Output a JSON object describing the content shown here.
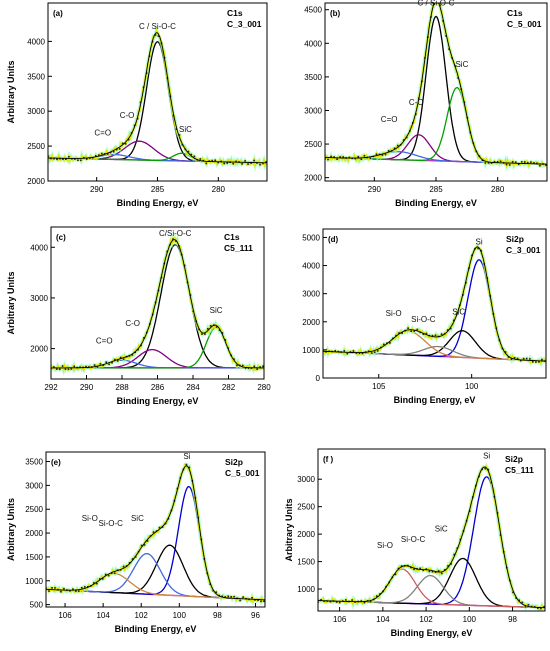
{
  "chart_data": [
    {
      "panel": "(a)",
      "type": "line",
      "title_line1": "C1s",
      "title_line2": "C_3_001",
      "xlabel": "Binding Energy, eV",
      "ylabel": "Arbitrary Units",
      "xlim": [
        294,
        276
      ],
      "ylim": [
        2000,
        4550
      ],
      "xticks": [
        290,
        285,
        280
      ],
      "yticks": [
        2000,
        2500,
        3000,
        3500,
        4000
      ],
      "x_reversed": true,
      "baseline": {
        "start": 2330,
        "end": 2260
      },
      "peaks": [
        {
          "label": "C / Si-O-C",
          "center": 285.0,
          "height": 1700,
          "width": 0.9,
          "color": "#000000"
        },
        {
          "label": "C-O",
          "center": 286.5,
          "height": 270,
          "width": 1.2,
          "color": "#800080"
        },
        {
          "label": "C=O",
          "center": 288.5,
          "height": 70,
          "width": 1.2,
          "color": "#4169e1"
        },
        {
          "label": "SiC",
          "center": 283.0,
          "height": 110,
          "width": 0.7,
          "color": "#00a000"
        }
      ],
      "peak_labels": [
        {
          "text": "C / Si-O-C",
          "x": 285.0,
          "y": 4180
        },
        {
          "text": "C-O",
          "x": 287.5,
          "y": 2900
        },
        {
          "text": "C=O",
          "x": 289.5,
          "y": 2650
        },
        {
          "text": "SiC",
          "x": 282.7,
          "y": 2700
        }
      ]
    },
    {
      "panel": "(b)",
      "type": "line",
      "title_line1": "C1s",
      "title_line2": "C_5_001",
      "xlabel": "Binding Energy, eV",
      "ylabel": "",
      "xlim": [
        294,
        276
      ],
      "ylim": [
        1950,
        4600
      ],
      "xticks": [
        290,
        285,
        280
      ],
      "yticks": [
        2000,
        2500,
        3000,
        3500,
        4000,
        4500
      ],
      "x_reversed": true,
      "baseline": {
        "start": 2300,
        "end": 2200
      },
      "peaks": [
        {
          "label": "C / Si-O-C",
          "center": 285.0,
          "height": 2150,
          "width": 0.8,
          "color": "#000000"
        },
        {
          "label": "C-O",
          "center": 286.4,
          "height": 380,
          "width": 0.9,
          "color": "#800080"
        },
        {
          "label": "C=O",
          "center": 288.0,
          "height": 120,
          "width": 1.4,
          "color": "#4169e1"
        },
        {
          "label": "SiC",
          "center": 283.3,
          "height": 1100,
          "width": 0.8,
          "color": "#00a000"
        }
      ],
      "peak_labels": [
        {
          "text": "C / Si-O-C",
          "x": 285.0,
          "y": 4560
        },
        {
          "text": "C-O",
          "x": 286.6,
          "y": 3080
        },
        {
          "text": "C=O",
          "x": 288.8,
          "y": 2830
        },
        {
          "text": "SiC",
          "x": 282.9,
          "y": 3650
        }
      ]
    },
    {
      "panel": "(c)",
      "type": "line",
      "title_line1": "C1s",
      "title_line2": "C5_111",
      "xlabel": "Binding Energy, eV",
      "ylabel": "Arbitrary Units",
      "xlim": [
        292,
        280
      ],
      "ylim": [
        1400,
        4400
      ],
      "xticks": [
        292,
        290,
        288,
        286,
        284,
        282,
        280
      ],
      "yticks": [
        2000,
        3000,
        4000
      ],
      "x_reversed": true,
      "baseline": {
        "start": 1620,
        "end": 1620
      },
      "peaks": [
        {
          "label": "C/Si-O-C",
          "center": 285.0,
          "height": 2430,
          "width": 0.8,
          "color": "#000000"
        },
        {
          "label": "C-O",
          "center": 286.3,
          "height": 360,
          "width": 0.8,
          "color": "#800080"
        },
        {
          "label": "C=O",
          "center": 288.0,
          "height": 150,
          "width": 0.8,
          "color": "#4169e1"
        },
        {
          "label": "SiC",
          "center": 282.7,
          "height": 800,
          "width": 0.55,
          "color": "#00a000"
        }
      ],
      "peak_labels": [
        {
          "text": "C/Si-O-C",
          "x": 285.0,
          "y": 4220
        },
        {
          "text": "C-O",
          "x": 287.4,
          "y": 2450
        },
        {
          "text": "C=O",
          "x": 289.0,
          "y": 2100
        },
        {
          "text": "SiC",
          "x": 282.7,
          "y": 2700
        }
      ]
    },
    {
      "panel": "(d)",
      "type": "line",
      "title_line1": "Si2p",
      "title_line2": "C_3_001",
      "xlabel": "Binding Energy, eV",
      "ylabel": "",
      "xlim": [
        108,
        96
      ],
      "ylim": [
        0,
        5300
      ],
      "xticks": [
        105,
        100
      ],
      "yticks": [
        0,
        1000,
        2000,
        3000,
        4000,
        5000
      ],
      "x_reversed": true,
      "baseline": {
        "start": 950,
        "end": 600
      },
      "peaks": [
        {
          "label": "Si",
          "center": 99.6,
          "height": 3500,
          "width": 0.6,
          "color": "#0000cd"
        },
        {
          "label": "SiC",
          "center": 100.5,
          "height": 950,
          "width": 0.7,
          "color": "#000000"
        },
        {
          "label": "Si-O-C",
          "center": 101.8,
          "height": 350,
          "width": 0.8,
          "color": "#808080"
        },
        {
          "label": "Si-O",
          "center": 103.4,
          "height": 850,
          "width": 0.9,
          "color": "#cd853f"
        }
      ],
      "peak_labels": [
        {
          "text": "Si",
          "x": 99.6,
          "y": 4750
        },
        {
          "text": "SiC",
          "x": 100.7,
          "y": 2250
        },
        {
          "text": "Si-O-C",
          "x": 102.6,
          "y": 2000
        },
        {
          "text": "Si-O",
          "x": 104.2,
          "y": 2200
        }
      ]
    },
    {
      "panel": "(e)",
      "type": "line",
      "title_line1": "Si2p",
      "title_line2": "C_5_001",
      "xlabel": "Binding Energy, eV",
      "ylabel": "Arbitrary Units",
      "xlim": [
        107,
        95.5
      ],
      "ylim": [
        450,
        3700
      ],
      "xticks": [
        106,
        104,
        102,
        100,
        98,
        96
      ],
      "yticks": [
        500,
        1000,
        1500,
        2000,
        2500,
        3000,
        3500
      ],
      "x_reversed": true,
      "baseline": {
        "start": 820,
        "end": 600
      },
      "peaks": [
        {
          "label": "Si",
          "center": 99.5,
          "height": 2300,
          "width": 0.55,
          "color": "#0000cd"
        },
        {
          "label": "SiC",
          "center": 100.5,
          "height": 1050,
          "width": 0.7,
          "color": "#000000"
        },
        {
          "label": "Si-O-C",
          "center": 101.7,
          "height": 850,
          "width": 0.7,
          "color": "#4169e1"
        },
        {
          "label": "Si-O",
          "center": 103.4,
          "height": 400,
          "width": 0.8,
          "color": "#cd853f"
        }
      ],
      "peak_labels": [
        {
          "text": "Si",
          "x": 99.6,
          "y": 3550
        },
        {
          "text": "SiC",
          "x": 102.2,
          "y": 2250
        },
        {
          "text": "Si-O-C",
          "x": 103.6,
          "y": 2150
        },
        {
          "text": "Si-O",
          "x": 104.7,
          "y": 2250
        }
      ]
    },
    {
      "panel": "(f )",
      "type": "line",
      "title_line1": "Si2p",
      "title_line2": "C5_111",
      "xlabel": "Binding Energy, eV",
      "ylabel": "Arbitrary Units",
      "xlim": [
        107,
        96.5
      ],
      "ylim": [
        600,
        3550
      ],
      "xticks": [
        106,
        104,
        102,
        100,
        98
      ],
      "yticks": [
        1000,
        1500,
        2000,
        2500,
        3000
      ],
      "x_reversed": true,
      "baseline": {
        "start": 790,
        "end": 660
      },
      "peaks": [
        {
          "label": "Si",
          "center": 99.2,
          "height": 2350,
          "width": 0.6,
          "color": "#0000cd"
        },
        {
          "label": "SiC",
          "center": 100.3,
          "height": 850,
          "width": 0.6,
          "color": "#000000"
        },
        {
          "label": "Si-O-C",
          "center": 101.8,
          "height": 520,
          "width": 0.6,
          "color": "#808080"
        },
        {
          "label": "Si-O",
          "center": 103.1,
          "height": 620,
          "width": 0.6,
          "color": "#cd5c5c"
        }
      ],
      "peak_labels": [
        {
          "text": "Si",
          "x": 99.2,
          "y": 3380
        },
        {
          "text": "SiC",
          "x": 101.3,
          "y": 2050
        },
        {
          "text": "Si-O-C",
          "x": 102.6,
          "y": 1860
        },
        {
          "text": "Si-O",
          "x": 103.9,
          "y": 1750
        }
      ]
    }
  ]
}
